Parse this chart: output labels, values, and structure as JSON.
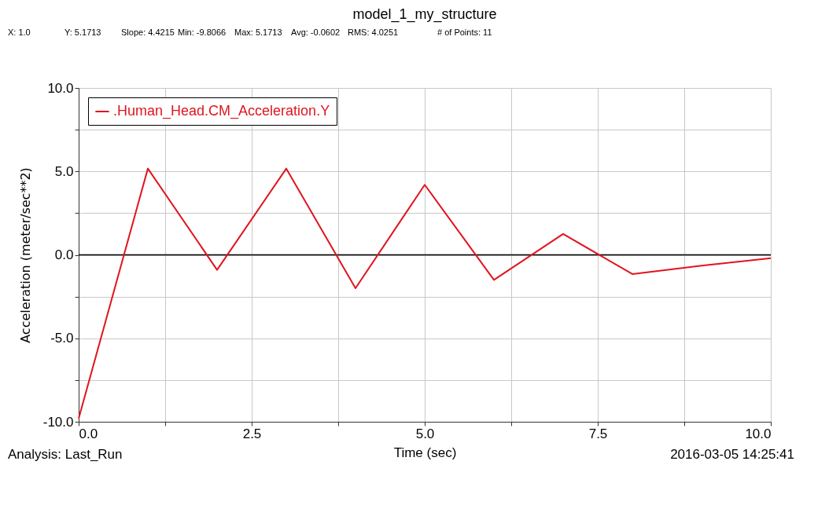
{
  "chart_data": {
    "type": "line",
    "title": "model_1_my_structure",
    "xlabel": "Time (sec)",
    "ylabel": "Acceleration (meter/sec**2)",
    "x": [
      0,
      1,
      2,
      3,
      4,
      5,
      6,
      7,
      8,
      9,
      10
    ],
    "series": [
      {
        "name": ".Human_Head.CM_Acceleration.Y",
        "color": "#e0141e",
        "values": [
          -9.8066,
          5.1713,
          -0.9,
          5.17,
          -2.0,
          4.2,
          -1.5,
          1.25,
          -1.15,
          -0.65,
          -0.2
        ]
      }
    ],
    "xlim": [
      0,
      10
    ],
    "xticks": [
      {
        "value": 0,
        "label": "0.0"
      },
      {
        "value": 1.25,
        "label": null
      },
      {
        "value": 2.5,
        "label": "2.5"
      },
      {
        "value": 3.75,
        "label": null
      },
      {
        "value": 5,
        "label": "5.0"
      },
      {
        "value": 6.25,
        "label": null
      },
      {
        "value": 7.5,
        "label": "7.5"
      },
      {
        "value": 8.75,
        "label": null
      },
      {
        "value": 10,
        "label": "10.0"
      }
    ],
    "ylim": [
      -10,
      10
    ],
    "yticks": [
      {
        "value": -10,
        "label": "-10.0"
      },
      {
        "value": -7.5,
        "label": null
      },
      {
        "value": -5,
        "label": "-5.0"
      },
      {
        "value": -2.5,
        "label": null
      },
      {
        "value": 0,
        "label": "0.0"
      },
      {
        "value": 2.5,
        "label": null
      },
      {
        "value": 5,
        "label": "5.0"
      },
      {
        "value": 7.5,
        "label": null
      },
      {
        "value": 10,
        "label": "10.0"
      }
    ],
    "ref_lines": [
      {
        "axis": "y",
        "value": 0,
        "label": null,
        "color": "#000000"
      }
    ],
    "grid": true,
    "legend": "top left",
    "marker": "none",
    "line_style": "solid",
    "annotations": [
      "X: 1.0",
      "Y: 5.1713",
      "Slope: 4.4215",
      "Min: -9.8066",
      "Max: 5.1713",
      "Avg: -0.0602",
      "RMS: 4.0251",
      "# of Points: 11",
      "Analysis:  Last_Run",
      "2016-03-05 14:25:41"
    ]
  }
}
